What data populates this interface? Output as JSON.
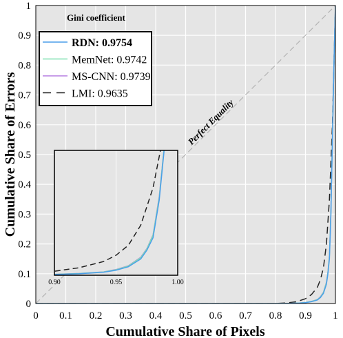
{
  "chart_data": {
    "type": "line",
    "title": "",
    "xlabel": "Cumulative Share of Pixels",
    "ylabel": "Cumulative Share of Errors",
    "xlim": [
      0,
      1
    ],
    "ylim": [
      0,
      1
    ],
    "xticks": [
      "0",
      "0.1",
      "0.2",
      "0.3",
      "0.4",
      "0.5",
      "0.6",
      "0.7",
      "0.8",
      "0.9",
      "1"
    ],
    "yticks": [
      "0",
      "0.1",
      "0.2",
      "0.3",
      "0.4",
      "0.5",
      "0.6",
      "0.7",
      "0.8",
      "0.9",
      "1"
    ],
    "grid": true,
    "legend_title": "Gini coefficient",
    "legend_position": "top-left",
    "diagonal_label": "Perfect Equality",
    "colors": {
      "background": "#e5e5e5",
      "grid": "#ffffff",
      "diagonal": "#b4b4b4"
    },
    "series": [
      {
        "name": "RDN: 0.9754",
        "bold": true,
        "color": "#4a9eea",
        "dash": "solid",
        "points": [
          [
            0,
            0
          ],
          [
            0.8,
            0
          ],
          [
            0.85,
            0.0005
          ],
          [
            0.88,
            0.0015
          ],
          [
            0.9,
            0.003
          ],
          [
            0.92,
            0.006
          ],
          [
            0.94,
            0.012
          ],
          [
            0.95,
            0.02
          ],
          [
            0.96,
            0.034
          ],
          [
            0.97,
            0.065
          ],
          [
            0.975,
            0.1
          ],
          [
            0.98,
            0.15
          ],
          [
            0.985,
            0.3
          ],
          [
            0.99,
            0.55
          ],
          [
            0.995,
            0.8
          ],
          [
            1,
            1
          ]
        ]
      },
      {
        "name": "MemNet: 0.9742",
        "bold": false,
        "color": "#7fe0b0",
        "dash": "solid",
        "points": [
          [
            0,
            0
          ],
          [
            0.8,
            0
          ],
          [
            0.85,
            0.0006
          ],
          [
            0.88,
            0.0017
          ],
          [
            0.9,
            0.0035
          ],
          [
            0.92,
            0.007
          ],
          [
            0.94,
            0.013
          ],
          [
            0.95,
            0.022
          ],
          [
            0.96,
            0.037
          ],
          [
            0.97,
            0.07
          ],
          [
            0.975,
            0.105
          ],
          [
            0.98,
            0.16
          ],
          [
            0.985,
            0.31
          ],
          [
            0.99,
            0.56
          ],
          [
            0.995,
            0.8
          ],
          [
            1,
            1
          ]
        ]
      },
      {
        "name": "MS-CNN: 0.9739",
        "bold": false,
        "color": "#b57de0",
        "dash": "solid",
        "points": [
          [
            0,
            0
          ],
          [
            0.8,
            0
          ],
          [
            0.85,
            0.0006
          ],
          [
            0.88,
            0.0018
          ],
          [
            0.9,
            0.0036
          ],
          [
            0.92,
            0.0072
          ],
          [
            0.94,
            0.0135
          ],
          [
            0.95,
            0.023
          ],
          [
            0.96,
            0.038
          ],
          [
            0.97,
            0.072
          ],
          [
            0.975,
            0.107
          ],
          [
            0.98,
            0.162
          ],
          [
            0.985,
            0.315
          ],
          [
            0.99,
            0.56
          ],
          [
            0.995,
            0.8
          ],
          [
            1,
            1
          ]
        ]
      },
      {
        "name": "LMI: 0.9635",
        "bold": false,
        "color": "#222222",
        "dash": "dashed",
        "points": [
          [
            0,
            0
          ],
          [
            0.8,
            0
          ],
          [
            0.84,
            0.002
          ],
          [
            0.87,
            0.006
          ],
          [
            0.9,
            0.016
          ],
          [
            0.92,
            0.03
          ],
          [
            0.94,
            0.055
          ],
          [
            0.95,
            0.08
          ],
          [
            0.96,
            0.12
          ],
          [
            0.97,
            0.2
          ],
          [
            0.98,
            0.35
          ],
          [
            0.99,
            0.6
          ],
          [
            1,
            1
          ]
        ]
      }
    ],
    "inset": {
      "xlim": [
        0.9,
        1.0
      ],
      "ylim": [
        0,
        0.5
      ],
      "xticks": [
        "0.90",
        "0.95",
        "1.00"
      ]
    }
  }
}
